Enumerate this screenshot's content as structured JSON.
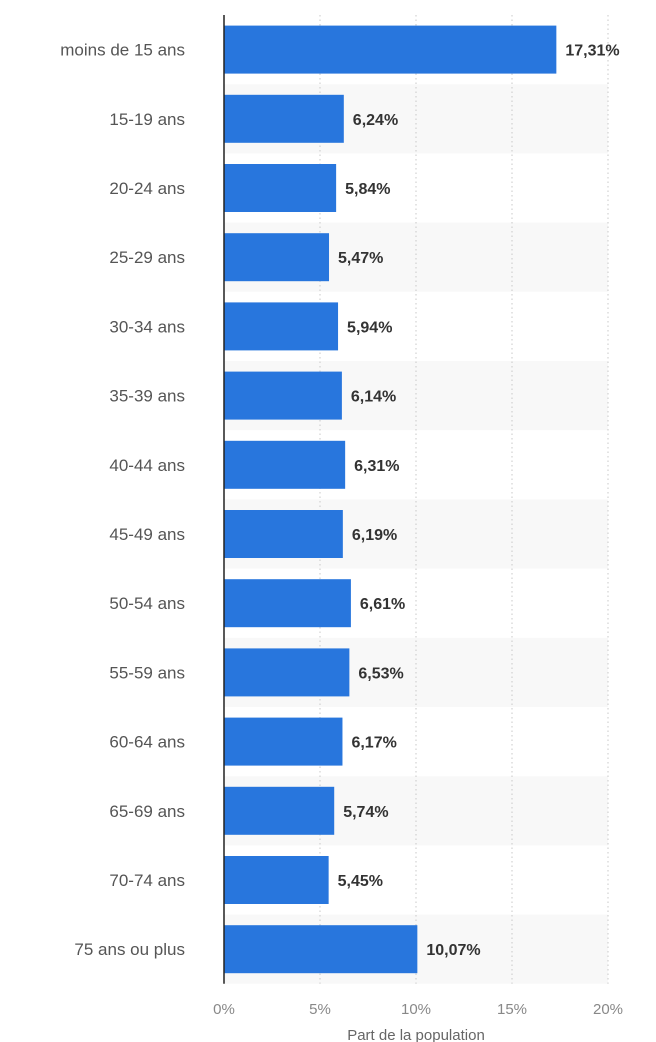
{
  "chart_data": {
    "type": "bar",
    "orientation": "horizontal",
    "categories": [
      "moins de 15 ans",
      "15-19 ans",
      "20-24 ans",
      "25-29 ans",
      "30-34 ans",
      "35-39 ans",
      "40-44 ans",
      "45-49 ans",
      "50-54 ans",
      "55-59 ans",
      "60-64 ans",
      "65-69 ans",
      "70-74 ans",
      "75 ans ou plus"
    ],
    "values": [
      17.31,
      6.24,
      5.84,
      5.47,
      5.94,
      6.14,
      6.31,
      6.19,
      6.61,
      6.53,
      6.17,
      5.74,
      5.45,
      10.07
    ],
    "value_labels": [
      "17,31%",
      "6,24%",
      "5,84%",
      "5,47%",
      "5,94%",
      "6,14%",
      "6,31%",
      "6,19%",
      "6,61%",
      "6,53%",
      "6,17%",
      "5,74%",
      "5,45%",
      "10,07%"
    ],
    "xlabel": "Part de la population",
    "xlim": [
      0,
      20
    ],
    "xticks": [
      0,
      5,
      10,
      15,
      20
    ],
    "xtick_labels": [
      "0%",
      "5%",
      "10%",
      "15%",
      "20%"
    ],
    "grid": true,
    "bar_color": "#2876dd",
    "stripe_color": "#f8f8f8"
  }
}
